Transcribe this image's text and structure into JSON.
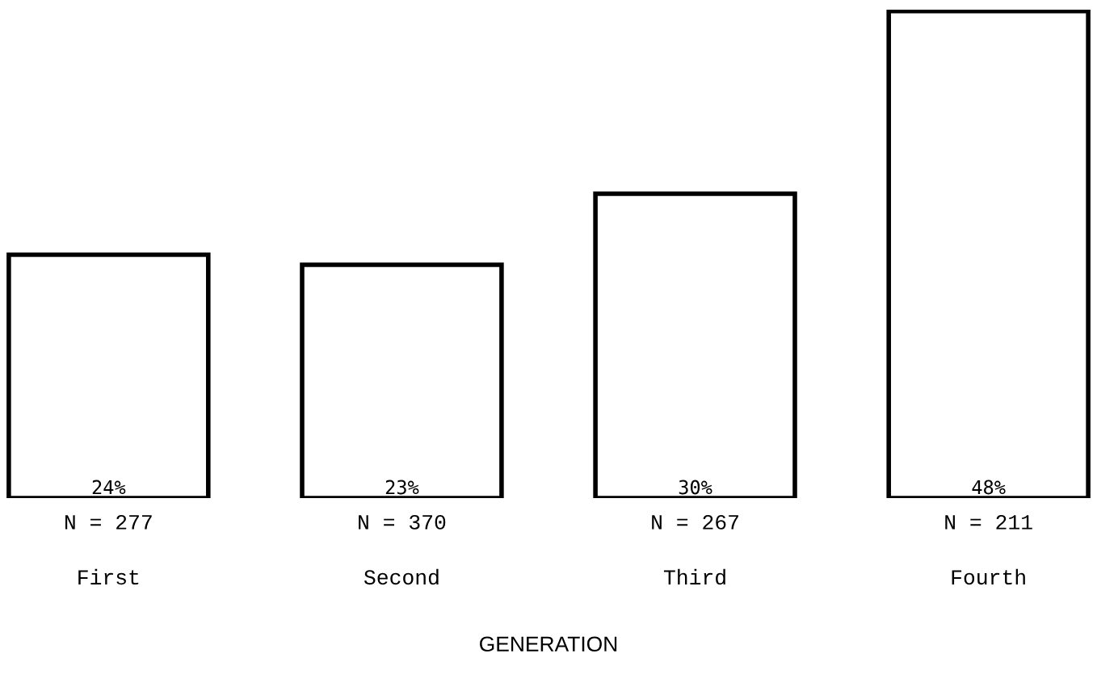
{
  "chart_data": {
    "type": "bar",
    "annotations": [
      "GENERATION"
    ],
    "categories": [
      "N = 277\n\nFirst",
      "N = 370\n\nSecond",
      "N = 267\n\nThird",
      "N = 211\n\nFourth"
    ],
    "values": [
      24,
      23,
      30,
      48
    ],
    "value_labels": [
      "24%",
      "23%",
      "30%",
      "48%"
    ],
    "color": "#ffffff"
  }
}
